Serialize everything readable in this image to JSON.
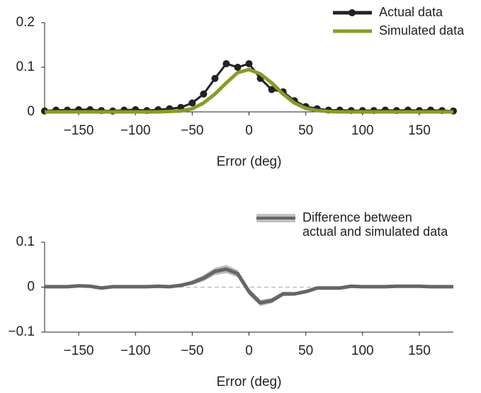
{
  "chart_data": [
    {
      "type": "line",
      "xlabel": "Error (deg)",
      "x": [
        -180,
        -170,
        -160,
        -150,
        -140,
        -130,
        -120,
        -110,
        -100,
        -90,
        -80,
        -70,
        -60,
        -50,
        -40,
        -30,
        -20,
        -10,
        0,
        10,
        20,
        30,
        40,
        50,
        60,
        70,
        80,
        90,
        100,
        110,
        120,
        130,
        140,
        150,
        160,
        170,
        180
      ],
      "series": [
        {
          "name": "Actual data",
          "color": "#222222",
          "marker": "o",
          "values": [
            0.002,
            0.004,
            0.004,
            0.005,
            0.005,
            0.003,
            0.002,
            0.004,
            0.005,
            0.003,
            0.005,
            0.007,
            0.01,
            0.02,
            0.04,
            0.075,
            0.108,
            0.1,
            0.108,
            0.075,
            0.05,
            0.045,
            0.025,
            0.012,
            0.007,
            0.004,
            0.004,
            0.003,
            0.003,
            0.003,
            0.004,
            0.003,
            0.004,
            0.003,
            0.004,
            0.003,
            0.002
          ]
        },
        {
          "name": "Simulated data",
          "color": "#8a9a2b",
          "values": [
            0,
            0,
            0,
            0,
            0,
            0,
            0,
            0,
            0,
            0,
            0,
            0.001,
            0.002,
            0.007,
            0.02,
            0.04,
            0.065,
            0.088,
            0.095,
            0.085,
            0.065,
            0.04,
            0.02,
            0.008,
            0.003,
            0.001,
            0,
            0,
            0,
            0,
            0,
            0,
            0,
            0,
            0,
            0,
            0
          ]
        }
      ],
      "xlim": [
        -180,
        180
      ],
      "xticks": [
        {
          "value": -150,
          "label": "−150"
        },
        {
          "value": -100,
          "label": "−100"
        },
        {
          "value": -50,
          "label": "−50"
        },
        0,
        50,
        100,
        150
      ],
      "ylim": [
        0,
        0.2
      ],
      "yticks": [
        0,
        0.1,
        0.2
      ],
      "legend": "upper right"
    },
    {
      "type": "line",
      "xlabel": "Error (deg)",
      "x": [
        -180,
        -170,
        -160,
        -150,
        -140,
        -130,
        -120,
        -110,
        -100,
        -90,
        -80,
        -70,
        -60,
        -50,
        -40,
        -30,
        -20,
        -10,
        0,
        10,
        20,
        30,
        40,
        50,
        60,
        70,
        80,
        90,
        100,
        110,
        120,
        130,
        140,
        150,
        160,
        170,
        180
      ],
      "series": [
        {
          "name": "Difference between\nactual and simulated data",
          "color": "#666666",
          "band_color": "#bbbbbb",
          "values": [
            0.001,
            0.001,
            0.001,
            0.003,
            0.002,
            -0.002,
            0.001,
            0.001,
            0.001,
            0.001,
            0.002,
            0.001,
            0.004,
            0.01,
            0.02,
            0.035,
            0.04,
            0.03,
            -0.01,
            -0.035,
            -0.03,
            -0.015,
            -0.015,
            -0.01,
            -0.002,
            -0.002,
            -0.002,
            0.002,
            0.001,
            0.001,
            0.001,
            0.002,
            0.002,
            0.002,
            0.001,
            0.001,
            0.001
          ],
          "error": [
            0.002,
            0.002,
            0.002,
            0.002,
            0.002,
            0.002,
            0.002,
            0.002,
            0.002,
            0.002,
            0.002,
            0.002,
            0.003,
            0.005,
            0.007,
            0.008,
            0.009,
            0.008,
            0.008,
            0.007,
            0.006,
            0.005,
            0.004,
            0.003,
            0.002,
            0.002,
            0.002,
            0.002,
            0.002,
            0.002,
            0.002,
            0.002,
            0.002,
            0.002,
            0.002,
            0.002,
            0.002
          ]
        }
      ],
      "xlim": [
        -180,
        180
      ],
      "xticks": [
        {
          "value": -150,
          "label": "−150"
        },
        {
          "value": -100,
          "label": "−100"
        },
        {
          "value": -50,
          "label": "−50"
        },
        0,
        50,
        100,
        150
      ],
      "ylim": [
        -0.1,
        0.1
      ],
      "yticks": [
        {
          "value": -0.1,
          "label": "−0.1"
        },
        0,
        0.1
      ],
      "legend": "upper right"
    }
  ]
}
